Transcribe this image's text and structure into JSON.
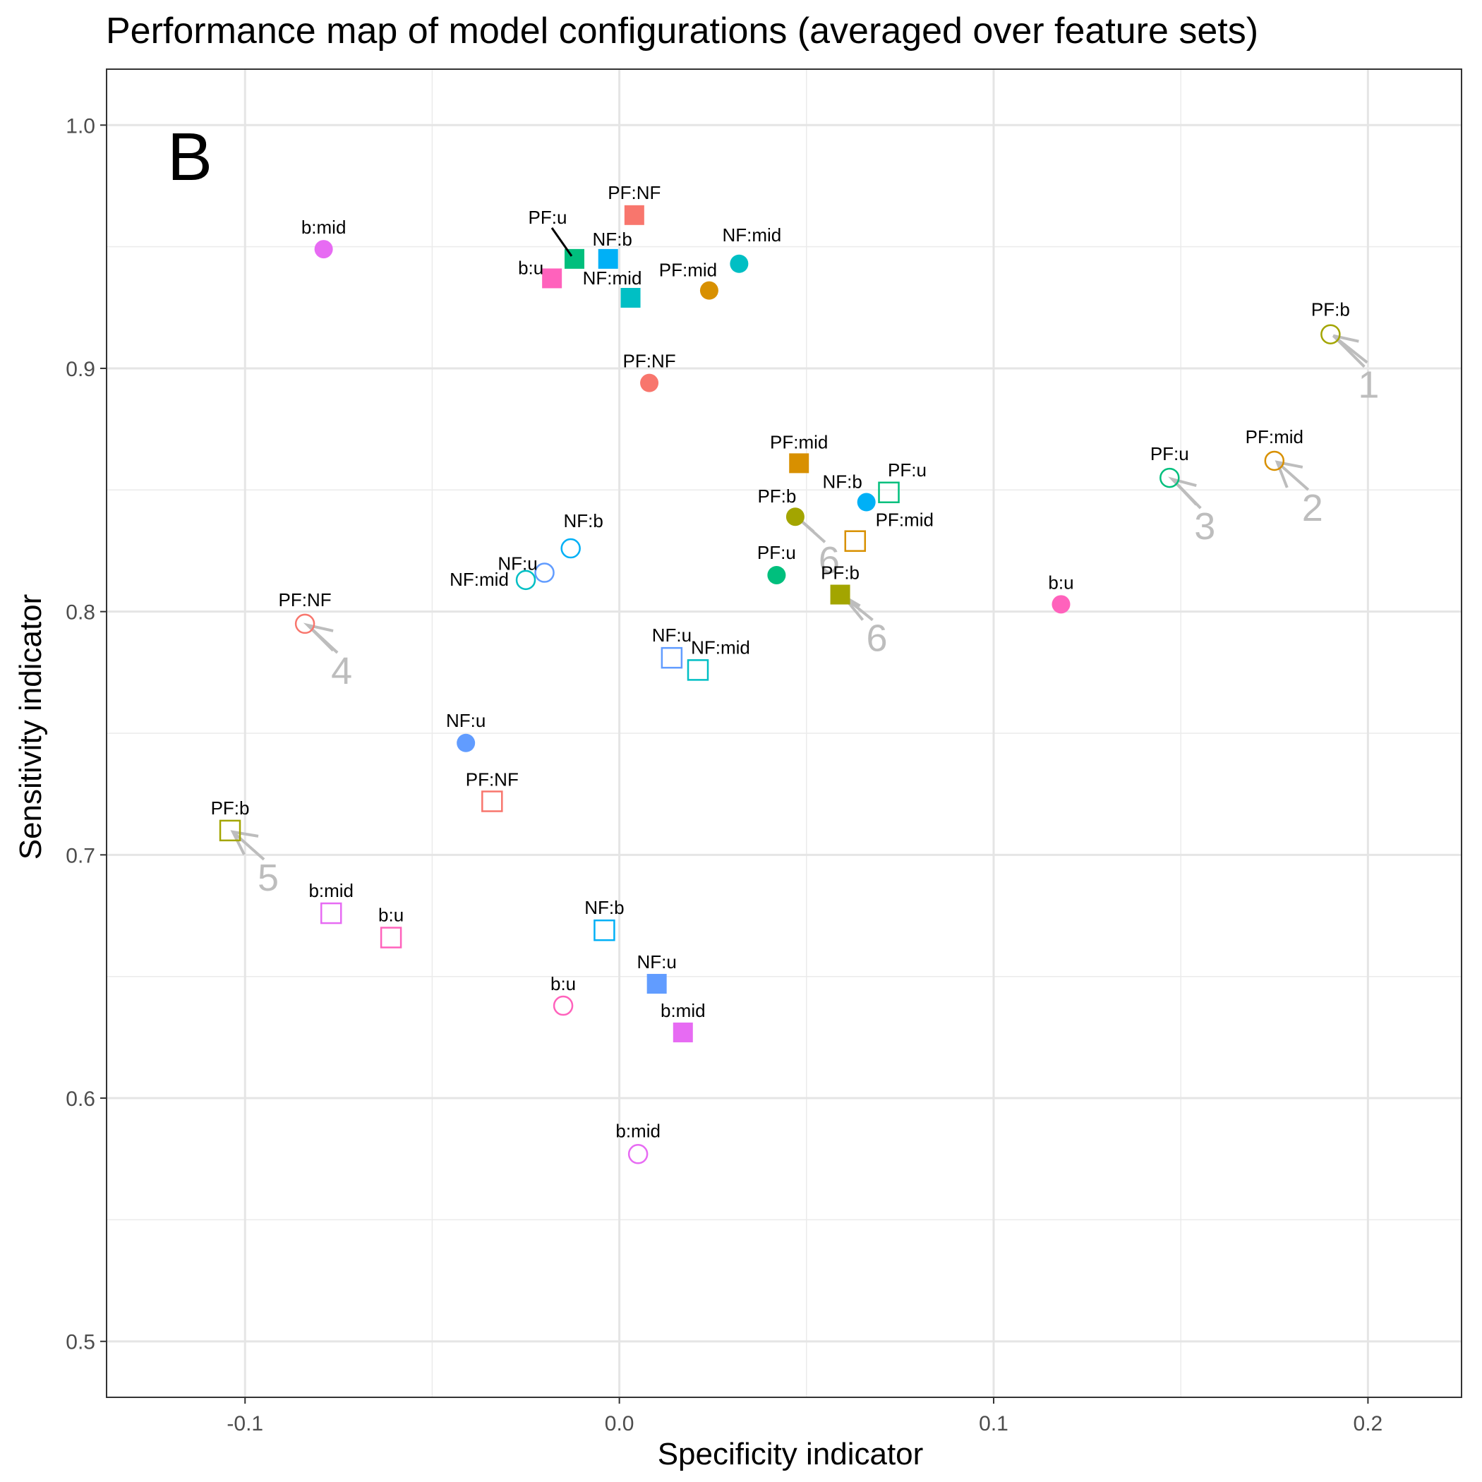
{
  "chart_data": {
    "type": "scatter",
    "title": "Performance map of model configurations (averaged over feature sets)",
    "panel_tag": "B",
    "xlabel": "Specificity indicator",
    "ylabel": "Sensitivity indicator",
    "xlim": [
      -0.137,
      0.225
    ],
    "ylim": [
      0.477,
      1.023
    ],
    "xticks": [
      -0.1,
      0.0,
      0.1,
      0.2
    ],
    "xtick_labels": [
      "-0.1",
      "0.0",
      "0.1",
      "0.2"
    ],
    "yticks": [
      0.5,
      0.6,
      0.7,
      0.8,
      0.9,
      1.0
    ],
    "ytick_labels": [
      "0.5",
      "0.6",
      "0.7",
      "0.8",
      "0.9",
      "1.0"
    ],
    "grid": true,
    "legend": "none",
    "colors": {
      "PF:NF": "#F8766D",
      "PF:mid": "#D89000",
      "PF:b": "#A3A500",
      "PF:u": "#00BF7D",
      "NF:mid": "#00BFC4",
      "NF:b": "#00B0F6",
      "NF:u": "#619CFF",
      "b:mid": "#E76BF3",
      "b:u": "#FF62BC"
    },
    "points": [
      {
        "label": "b:mid",
        "shape": "filled-circle",
        "x": -0.079,
        "y": 0.949
      },
      {
        "label": "PF:NF",
        "shape": "filled-square",
        "x": 0.004,
        "y": 0.963
      },
      {
        "label": "PF:u",
        "shape": "filled-square",
        "x": -0.012,
        "y": 0.945
      },
      {
        "label": "NF:b",
        "shape": "filled-square",
        "x": -0.003,
        "y": 0.945
      },
      {
        "label": "b:u",
        "shape": "filled-square",
        "x": -0.018,
        "y": 0.937
      },
      {
        "label": "NF:mid",
        "shape": "filled-square",
        "x": 0.003,
        "y": 0.929
      },
      {
        "label": "PF:mid",
        "shape": "filled-circle",
        "x": 0.024,
        "y": 0.932
      },
      {
        "label": "NF:mid",
        "shape": "filled-circle",
        "x": 0.032,
        "y": 0.943
      },
      {
        "label": "PF:NF",
        "shape": "filled-circle",
        "x": 0.008,
        "y": 0.894
      },
      {
        "label": "PF:b",
        "shape": "open-circle",
        "x": 0.19,
        "y": 0.914,
        "rank": "1"
      },
      {
        "label": "PF:mid",
        "shape": "open-circle",
        "x": 0.175,
        "y": 0.862,
        "rank": "2"
      },
      {
        "label": "PF:u",
        "shape": "open-circle",
        "x": 0.147,
        "y": 0.855,
        "rank": "3"
      },
      {
        "label": "PF:mid",
        "shape": "filled-square",
        "x": 0.048,
        "y": 0.861
      },
      {
        "label": "PF:u",
        "shape": "open-square",
        "x": 0.072,
        "y": 0.849
      },
      {
        "label": "NF:b",
        "shape": "filled-circle",
        "x": 0.066,
        "y": 0.845
      },
      {
        "label": "PF:b",
        "shape": "filled-circle",
        "x": 0.047,
        "y": 0.839,
        "rank": "6"
      },
      {
        "label": "PF:mid",
        "shape": "open-square",
        "x": 0.063,
        "y": 0.829
      },
      {
        "label": "PF:u",
        "shape": "filled-circle",
        "x": 0.042,
        "y": 0.815
      },
      {
        "label": "PF:b",
        "shape": "filled-square",
        "x": 0.059,
        "y": 0.807,
        "rank": "6"
      },
      {
        "label": "b:u",
        "shape": "filled-circle",
        "x": 0.118,
        "y": 0.803
      },
      {
        "label": "NF:b",
        "shape": "open-circle",
        "x": -0.013,
        "y": 0.826
      },
      {
        "label": "NF:u",
        "shape": "open-circle",
        "x": -0.02,
        "y": 0.816
      },
      {
        "label": "NF:mid",
        "shape": "open-circle",
        "x": -0.025,
        "y": 0.813
      },
      {
        "label": "PF:NF",
        "shape": "open-circle",
        "x": -0.084,
        "y": 0.795,
        "rank": "4"
      },
      {
        "label": "NF:u",
        "shape": "open-square",
        "x": 0.014,
        "y": 0.781
      },
      {
        "label": "NF:mid",
        "shape": "open-square",
        "x": 0.021,
        "y": 0.776
      },
      {
        "label": "NF:u",
        "shape": "filled-circle",
        "x": -0.041,
        "y": 0.746
      },
      {
        "label": "PF:NF",
        "shape": "open-square",
        "x": -0.034,
        "y": 0.722
      },
      {
        "label": "PF:b",
        "shape": "open-square",
        "x": -0.104,
        "y": 0.71,
        "rank": "5"
      },
      {
        "label": "b:mid",
        "shape": "open-square",
        "x": -0.077,
        "y": 0.676
      },
      {
        "label": "b:u",
        "shape": "open-square",
        "x": -0.061,
        "y": 0.666
      },
      {
        "label": "NF:b",
        "shape": "open-square",
        "x": -0.004,
        "y": 0.669
      },
      {
        "label": "NF:u",
        "shape": "filled-square",
        "x": 0.01,
        "y": 0.647
      },
      {
        "label": "b:u",
        "shape": "open-circle",
        "x": -0.015,
        "y": 0.638
      },
      {
        "label": "b:mid",
        "shape": "filled-square",
        "x": 0.017,
        "y": 0.627
      },
      {
        "label": "b:mid",
        "shape": "open-circle",
        "x": 0.005,
        "y": 0.577
      }
    ]
  }
}
